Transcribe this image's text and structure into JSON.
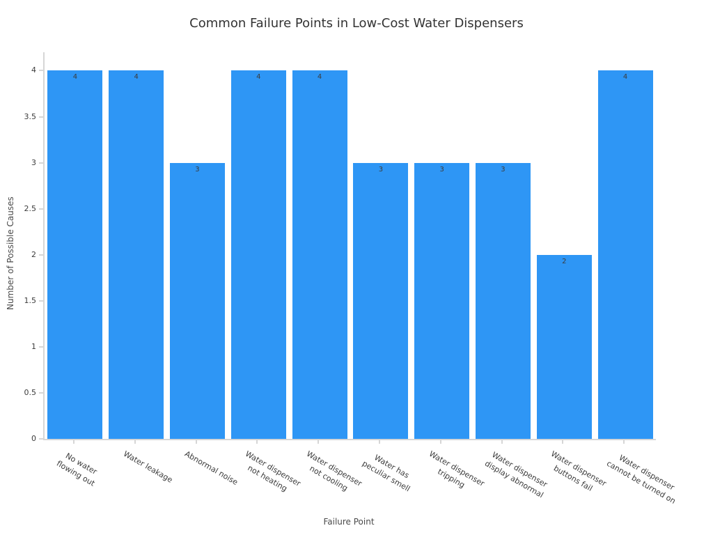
{
  "chart_data": {
    "type": "bar",
    "title": "Common Failure Points in Low-Cost Water Dispensers",
    "xlabel": "Failure Point",
    "ylabel": "Number of Possible Causes",
    "categories": [
      "No water\nflowing out",
      "Water leakage",
      "Abnormal noise",
      "Water dispenser\nnot heating",
      "Water dispenser\nnot cooling",
      "Water has\npeculiar smell",
      "Water dispenser\ntripping",
      "Water dispenser\ndisplay abnormal",
      "Water dispenser\nbuttons fail",
      "Water dispenser\ncannot be turned on"
    ],
    "values": [
      4,
      4,
      3,
      4,
      4,
      3,
      3,
      3,
      2,
      4
    ],
    "bar_labels": [
      "4",
      "4",
      "3",
      "4",
      "4",
      "3",
      "3",
      "3",
      "2",
      "4"
    ],
    "yticks": [
      0,
      0.5,
      1,
      1.5,
      2,
      2.5,
      3,
      3.5,
      4
    ],
    "ytick_labels": [
      "0",
      "0.5",
      "1",
      "1.5",
      "2",
      "2.5",
      "3",
      "3.5",
      "4"
    ],
    "ylim": [
      0,
      4.2
    ],
    "grid": false,
    "legend_position": "none",
    "bar_width_fraction": 0.9,
    "xtick_rotation_css_deg": 30,
    "colors": {
      "bar": "#2e96f5",
      "value_label": "#3b3b3b",
      "axis": "#d6d6d6",
      "tick_label": "#3b3b3b",
      "title": "#333333",
      "axis_title": "#4a4a4a",
      "background": "#ffffff"
    }
  }
}
